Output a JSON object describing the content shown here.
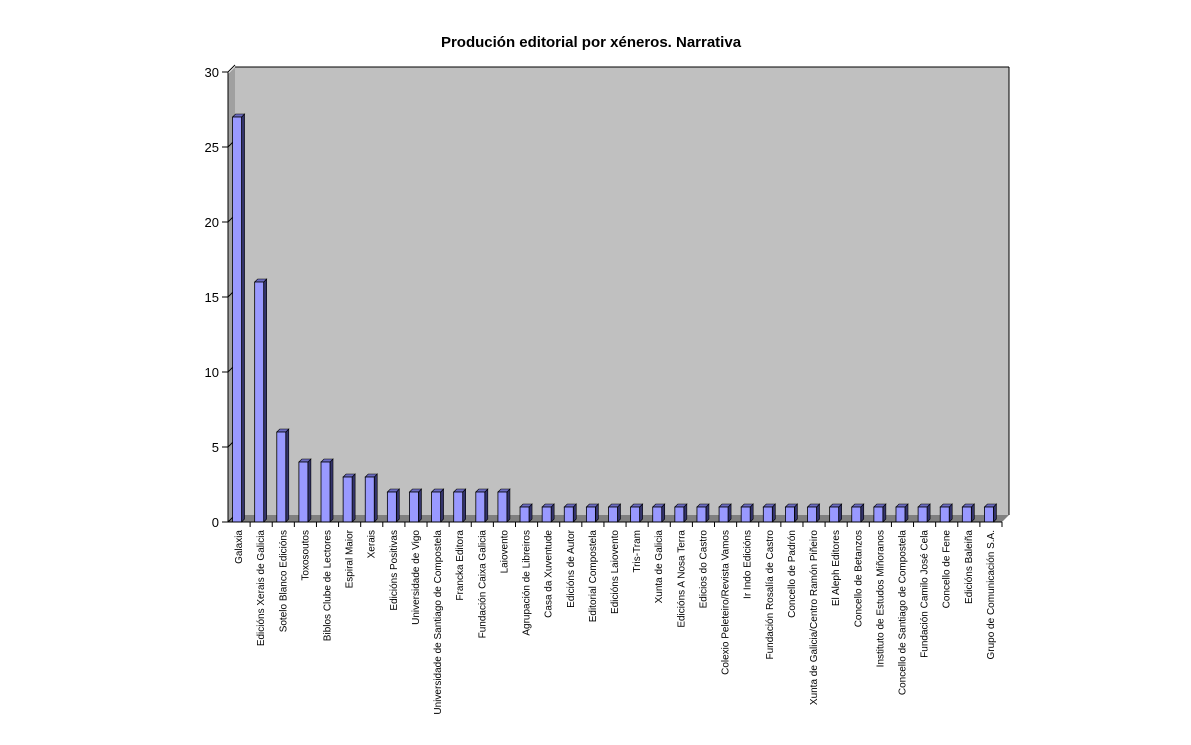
{
  "chart_data": {
    "type": "bar",
    "title": "Produción editorial por xéneros. Narrativa",
    "xlabel": "",
    "ylabel": "",
    "ylim": [
      0,
      30
    ],
    "yticks": [
      0,
      5,
      10,
      15,
      20,
      25,
      30
    ],
    "grid": false,
    "style": "3d",
    "colors": {
      "bar_front": "#9999ff",
      "bar_side": "#33336a",
      "bar_top": "#6b6bc0",
      "plot_background": "#c0c0c0",
      "plot_floor": "#808080"
    },
    "categories": [
      "Galaxia",
      "Edicións Xerais de Galicia",
      "Sotelo Blanco Edicións",
      "Toxosoutos",
      "Biblos Clube de Lectores",
      "Espiral Maior",
      "Xerais",
      "Edicións Positivas",
      "Universidade de Vigo",
      "Universidade de Santiago de Compostela",
      "Francka Editora",
      "Fundación Caixa Galicia",
      "Laiovento",
      "Agrupación de Libreiros",
      "Casa da Xuventude",
      "Edicións de Autor",
      "Editorial Compostela",
      "Edicións Laiovento",
      "Tris-Tram",
      "Xunta de Galicia",
      "Edicións A Nosa Terra",
      "Edicios do Castro",
      "Colexio Peleteiro/Revista Vamos",
      "Ir Indo Edicións",
      "Fundación Rosalía de Castro",
      "Concello de Padrón",
      "Xunta de Galicia/Centro Ramón Piñeiro",
      "El Aleph Editores",
      "Concello de Betanzos",
      "Instituto de Estudos Miñoranos",
      "Concello de Santiago de Compostela",
      "Fundación Camilo José Cela",
      "Concello de Fene",
      "Edicións Baleiña",
      "Grupo de Comunicación S.A."
    ],
    "values": [
      27,
      16,
      6,
      4,
      4,
      3,
      3,
      2,
      2,
      2,
      2,
      2,
      2,
      1,
      1,
      1,
      1,
      1,
      1,
      1,
      1,
      1,
      1,
      1,
      1,
      1,
      1,
      1,
      1,
      1,
      1,
      1,
      1,
      1,
      1
    ]
  }
}
